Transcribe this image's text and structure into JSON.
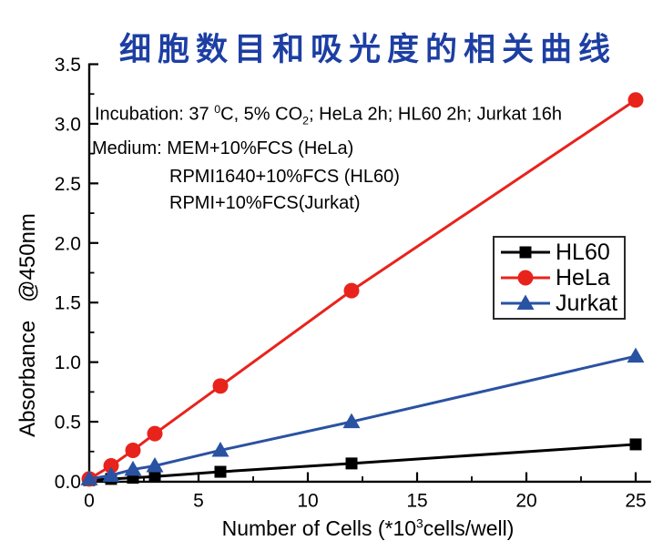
{
  "title_color": "#1d3fa3",
  "annotation": {
    "line1": {
      "pre": "Incubation: 37 ",
      "sup": "0",
      "mid": "C, 5% CO",
      "sub": "2",
      "post": "; HeLa 2h; HL60 2h; Jurkat 16h"
    },
    "line2": "Medium: MEM+10%FCS (HeLa)",
    "line3": "RPMI1640+10%FCS (HL60)",
    "line4": "RPMI+10%FCS(Jurkat)"
  },
  "axes": {
    "y_label": "Absorbance   @450nm",
    "x_label": {
      "pre": "Number of Cells (*10",
      "sup": "3",
      "post": "cells/well)"
    },
    "x_tick_labels": [
      "0",
      "5",
      "10",
      "15",
      "20",
      "25"
    ],
    "y_tick_labels": [
      "0.0",
      "0.5",
      "1.0",
      "1.5",
      "2.0",
      "2.5",
      "3.0",
      "3.5"
    ]
  },
  "chart_data": {
    "type": "line",
    "title": "细胞数目和吸光度的相关曲线",
    "xlabel": "Number of Cells (*10^3 cells/well)",
    "ylabel": "Absorbance @450nm",
    "x": [
      0,
      1,
      2,
      3,
      6,
      12,
      25
    ],
    "series": [
      {
        "name": "HL60",
        "color": "#000000",
        "marker": "square",
        "values": [
          0.01,
          0.02,
          0.03,
          0.04,
          0.08,
          0.15,
          0.31
        ]
      },
      {
        "name": "HeLa",
        "color": "#e8231c",
        "marker": "circle",
        "values": [
          0.02,
          0.13,
          0.26,
          0.4,
          0.8,
          1.6,
          3.2
        ]
      },
      {
        "name": "Jurkat",
        "color": "#2a52a2",
        "marker": "triangle",
        "values": [
          0.02,
          0.05,
          0.1,
          0.13,
          0.26,
          0.5,
          1.05
        ]
      }
    ],
    "xlim": [
      0,
      25.7
    ],
    "ylim": [
      0,
      3.5
    ],
    "x_major_ticks": [
      0,
      5,
      10,
      15,
      20,
      25
    ],
    "x_minor_ticks": [
      2.5,
      7.5,
      12.5,
      17.5,
      22.5
    ],
    "y_major_step": 0.5,
    "y_minor_step": 0.25,
    "grid": false,
    "legend_position": "right-middle",
    "annotations": [
      "Incubation: 37 0C, 5% CO2; HeLa 2h; HL60 2h; Jurkat 16h",
      "Medium: MEM+10%FCS (HeLa)",
      "RPMI1640+10%FCS (HL60)",
      "RPMI+10%FCS(Jurkat)"
    ]
  }
}
